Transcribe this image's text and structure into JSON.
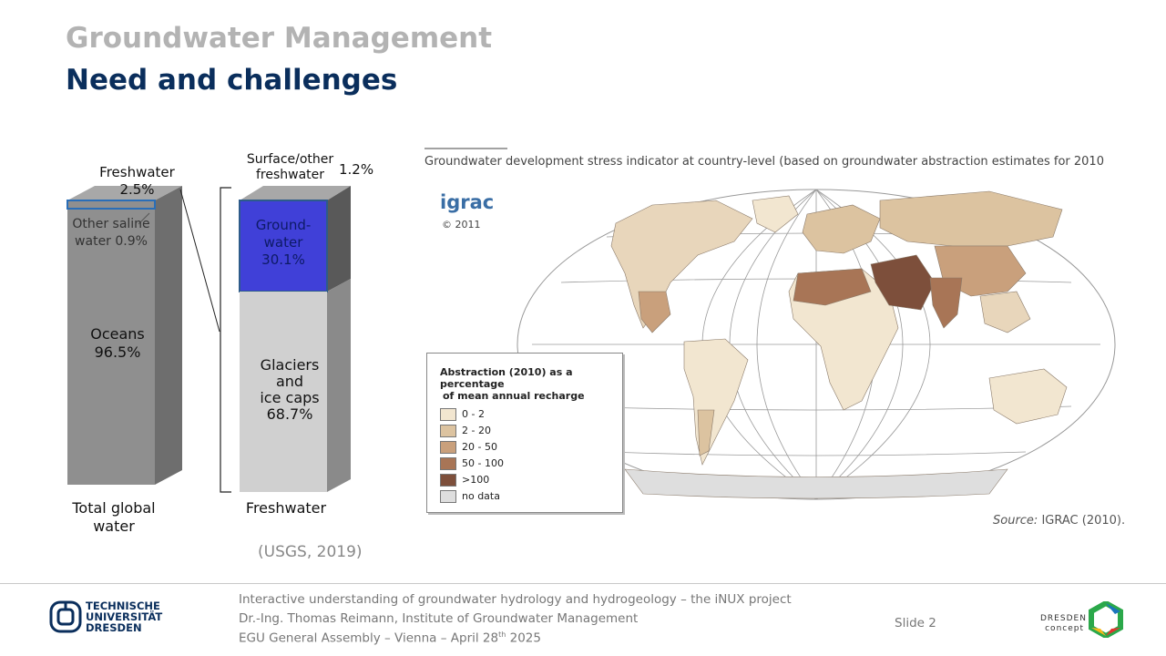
{
  "header": {
    "title": "Groundwater Management",
    "subtitle": "Need and challenges"
  },
  "water_chart": {
    "left_bar": {
      "top_label": "Freshwater 2.5%",
      "saline_label_line1": "Other saline",
      "saline_label_line2": "water 0.9%",
      "oceans_line1": "Oceans",
      "oceans_line2": "96.5%",
      "bottom_line1": "Total global",
      "bottom_line2": "water"
    },
    "right_bar": {
      "surface_line1": "Surface/other",
      "surface_line2": "freshwater",
      "surface_pct": "1.2%",
      "gw_line1": "Ground-",
      "gw_line2": "water",
      "gw_line3": "30.1%",
      "glacier_line1": "Glaciers",
      "glacier_line2": "and",
      "glacier_line3": "ice caps",
      "glacier_line4": "68.7%",
      "bottom_label": "Freshwater"
    },
    "source": "(USGS, 2019)"
  },
  "map": {
    "caption": "Groundwater development stress indicator at country-level (based on groundwater abstraction estimates for 2010",
    "logo_text": "igrac",
    "logo_year": "© 2011",
    "legend_title_line1": "Abstraction (2010) as a percentage",
    "legend_title_line2": "of mean annual recharge",
    "legend": [
      {
        "label": "0 - 2",
        "color": "#f2e6d0"
      },
      {
        "label": "2 - 20",
        "color": "#dcc3a0"
      },
      {
        "label": "20 - 50",
        "color": "#c9a07c"
      },
      {
        "label": "50 - 100",
        "color": "#a87556"
      },
      {
        "label": ">100",
        "color": "#7d4f3b"
      },
      {
        "label": "no data",
        "color": "#dedede"
      }
    ],
    "source_italic": "Source:",
    "source_text": "IGRAC (2010)."
  },
  "footer": {
    "uni_line1": "TECHNISCHE",
    "uni_line2": "UNIVERSITÄT",
    "uni_line3": "DRESDEN",
    "line1": "Interactive understanding of groundwater hydrology and hydrogeology – the iNUX project",
    "line2": "Dr.-Ing. Thomas Reimann, Institute of Groundwater Management",
    "line3_pre": "EGU General Assembly – Vienna – April 28",
    "line3_sup": "th",
    "line3_post": " 2025",
    "slide_label": "Slide 2",
    "dresden_line1": "DRESDEN",
    "dresden_line2": "concept"
  }
}
